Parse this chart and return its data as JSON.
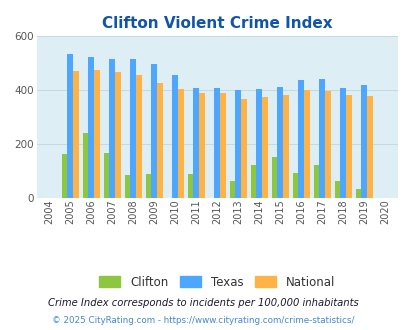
{
  "title": "Clifton Violent Crime Index",
  "years": [
    2004,
    2005,
    2006,
    2007,
    2008,
    2009,
    2010,
    2011,
    2012,
    2013,
    2014,
    2015,
    2016,
    2017,
    2018,
    2019,
    2020
  ],
  "clifton": [
    0,
    165,
    240,
    168,
    85,
    90,
    0,
    90,
    0,
    62,
    122,
    152,
    93,
    122,
    62,
    32,
    0
  ],
  "texas": [
    0,
    535,
    522,
    515,
    515,
    498,
    455,
    410,
    410,
    402,
    405,
    412,
    438,
    441,
    410,
    420,
    0
  ],
  "national": [
    0,
    470,
    474,
    468,
    458,
    428,
    404,
    390,
    390,
    368,
    376,
    383,
    400,
    397,
    381,
    379,
    0
  ],
  "clifton_color": "#8dc63f",
  "texas_color": "#4da6ff",
  "national_color": "#ffb347",
  "bg_color": "#deeef5",
  "ylim": [
    0,
    600
  ],
  "yticks": [
    0,
    200,
    400,
    600
  ],
  "bar_width": 0.27,
  "footnote1": "Crime Index corresponds to incidents per 100,000 inhabitants",
  "footnote2": "© 2025 CityRating.com - https://www.cityrating.com/crime-statistics/",
  "title_color": "#1155aa",
  "footnote1_color": "#1a1a2e",
  "footnote2_color": "#4488cc"
}
